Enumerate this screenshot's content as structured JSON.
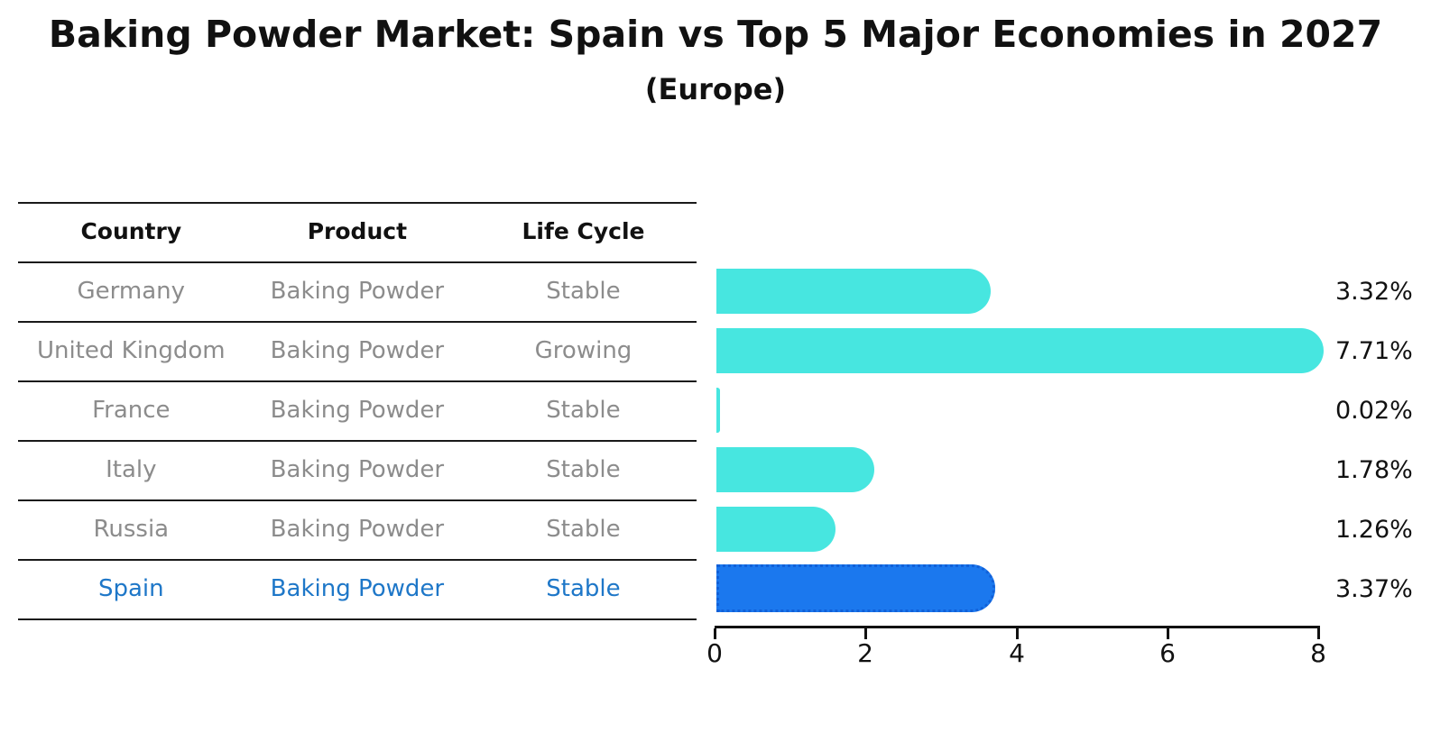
{
  "title": "Baking Powder Market: Spain vs Top 5 Major Economies in 2027",
  "subtitle": "(Europe)",
  "table": {
    "headers": {
      "country": "Country",
      "product": "Product",
      "life_cycle": "Life Cycle"
    },
    "rows": [
      {
        "country": "Germany",
        "product": "Baking Powder",
        "life_cycle": "Stable",
        "highlighted": false
      },
      {
        "country": "United Kingdom",
        "product": "Baking Powder",
        "life_cycle": "Growing",
        "highlighted": false
      },
      {
        "country": "France",
        "product": "Baking Powder",
        "life_cycle": "Stable",
        "highlighted": false
      },
      {
        "country": "Italy",
        "product": "Baking Powder",
        "life_cycle": "Stable",
        "highlighted": false
      },
      {
        "country": "Russia",
        "product": "Baking Powder",
        "life_cycle": "Stable",
        "highlighted": false
      },
      {
        "country": "Spain",
        "product": "Baking Powder",
        "life_cycle": "Stable",
        "highlighted": true
      }
    ]
  },
  "chart_data": {
    "type": "bar",
    "orientation": "horizontal",
    "title": "Baking Powder Market: Spain vs Top 5 Major Economies in 2027 (Europe)",
    "categories": [
      "Germany",
      "United Kingdom",
      "France",
      "Italy",
      "Russia",
      "Spain"
    ],
    "values": [
      3.32,
      7.71,
      0.02,
      1.78,
      1.26,
      3.37
    ],
    "value_labels": [
      "3.32%",
      "7.71%",
      "0.02%",
      "1.78%",
      "1.26%",
      "3.37%"
    ],
    "unit": "%",
    "xlim": [
      0,
      8
    ],
    "x_ticks": [
      0,
      2,
      4,
      6,
      8
    ],
    "x_tick_labels": [
      "0",
      "2",
      "4",
      "6",
      "8"
    ],
    "grid": false,
    "legend": "none",
    "bar_color": "#47e6e0",
    "highlight_color": "#1b78ee",
    "highlight_border_color": "#1160d8",
    "highlight_index": 5
  },
  "colors": {
    "highlight_text": "#1e77c8",
    "cell_text": "#8c8c8c",
    "header_text": "#111111",
    "background": "#ffffff"
  }
}
